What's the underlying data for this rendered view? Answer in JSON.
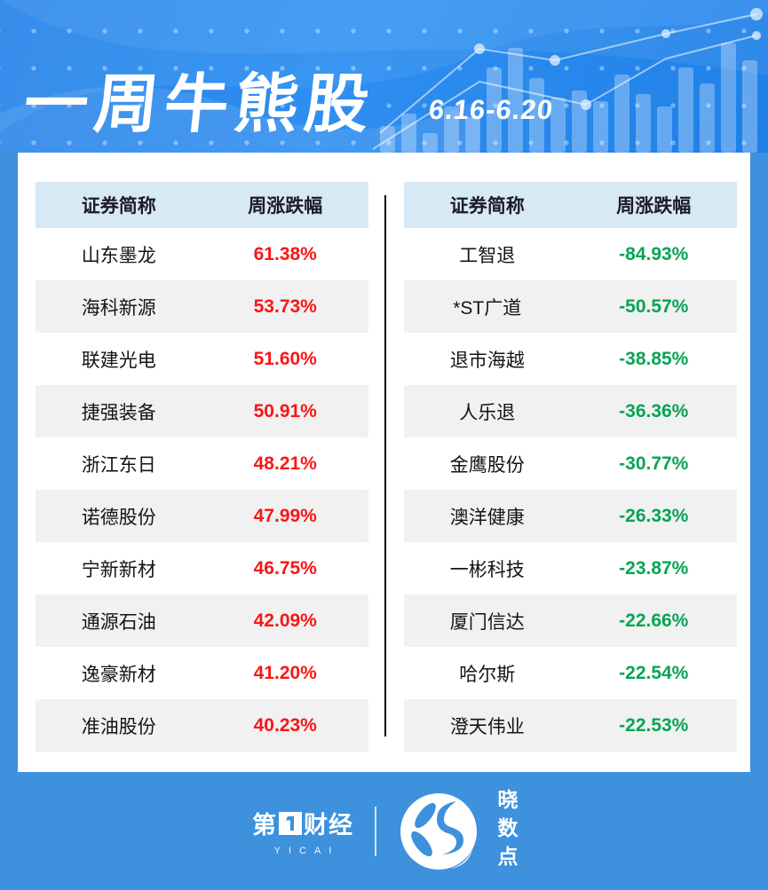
{
  "header": {
    "title": "一周牛熊股",
    "date_range": "6.16-6.20"
  },
  "chart_data": [
    {
      "id": "weekly-top-gainers",
      "type": "table",
      "columns": [
        "证券简称",
        "周涨跌幅"
      ],
      "rows": [
        [
          "山东墨龙",
          "61.38%"
        ],
        [
          "海科新源",
          "53.73%"
        ],
        [
          "联建光电",
          "51.60%"
        ],
        [
          "捷强装备",
          "50.91%"
        ],
        [
          "浙江东日",
          "48.21%"
        ],
        [
          "诺德股份",
          "47.99%"
        ],
        [
          "宁新新材",
          "46.75%"
        ],
        [
          "通源石油",
          "42.09%"
        ],
        [
          "逸豪新材",
          "41.20%"
        ],
        [
          "准油股份",
          "40.23%"
        ]
      ]
    },
    {
      "id": "weekly-top-losers",
      "type": "table",
      "columns": [
        "证券简称",
        "周涨跌幅"
      ],
      "rows": [
        [
          "工智退",
          "-84.93%"
        ],
        [
          "*ST广道",
          "-50.57%"
        ],
        [
          "退市海越",
          "-38.85%"
        ],
        [
          "人乐退",
          "-36.36%"
        ],
        [
          "金鹰股份",
          "-30.77%"
        ],
        [
          "澳洋健康",
          "-26.33%"
        ],
        [
          "一彬科技",
          "-23.87%"
        ],
        [
          "厦门信达",
          "-22.66%"
        ],
        [
          "哈尔斯",
          "-22.54%"
        ],
        [
          "澄天伟业",
          "-22.53%"
        ]
      ]
    }
  ],
  "footer": {
    "brand_prefix": "第",
    "brand_suffix": "财经",
    "brand_sub": "YICAI",
    "partner": "晓数点"
  },
  "colors": {
    "up": "#f91616",
    "down": "#06a454",
    "frame_blue": "#3d91dd",
    "table_header_bg": "#d8e9f6",
    "row_alt_bg": "#f1f1f1",
    "divider": "#0a0a0a"
  }
}
